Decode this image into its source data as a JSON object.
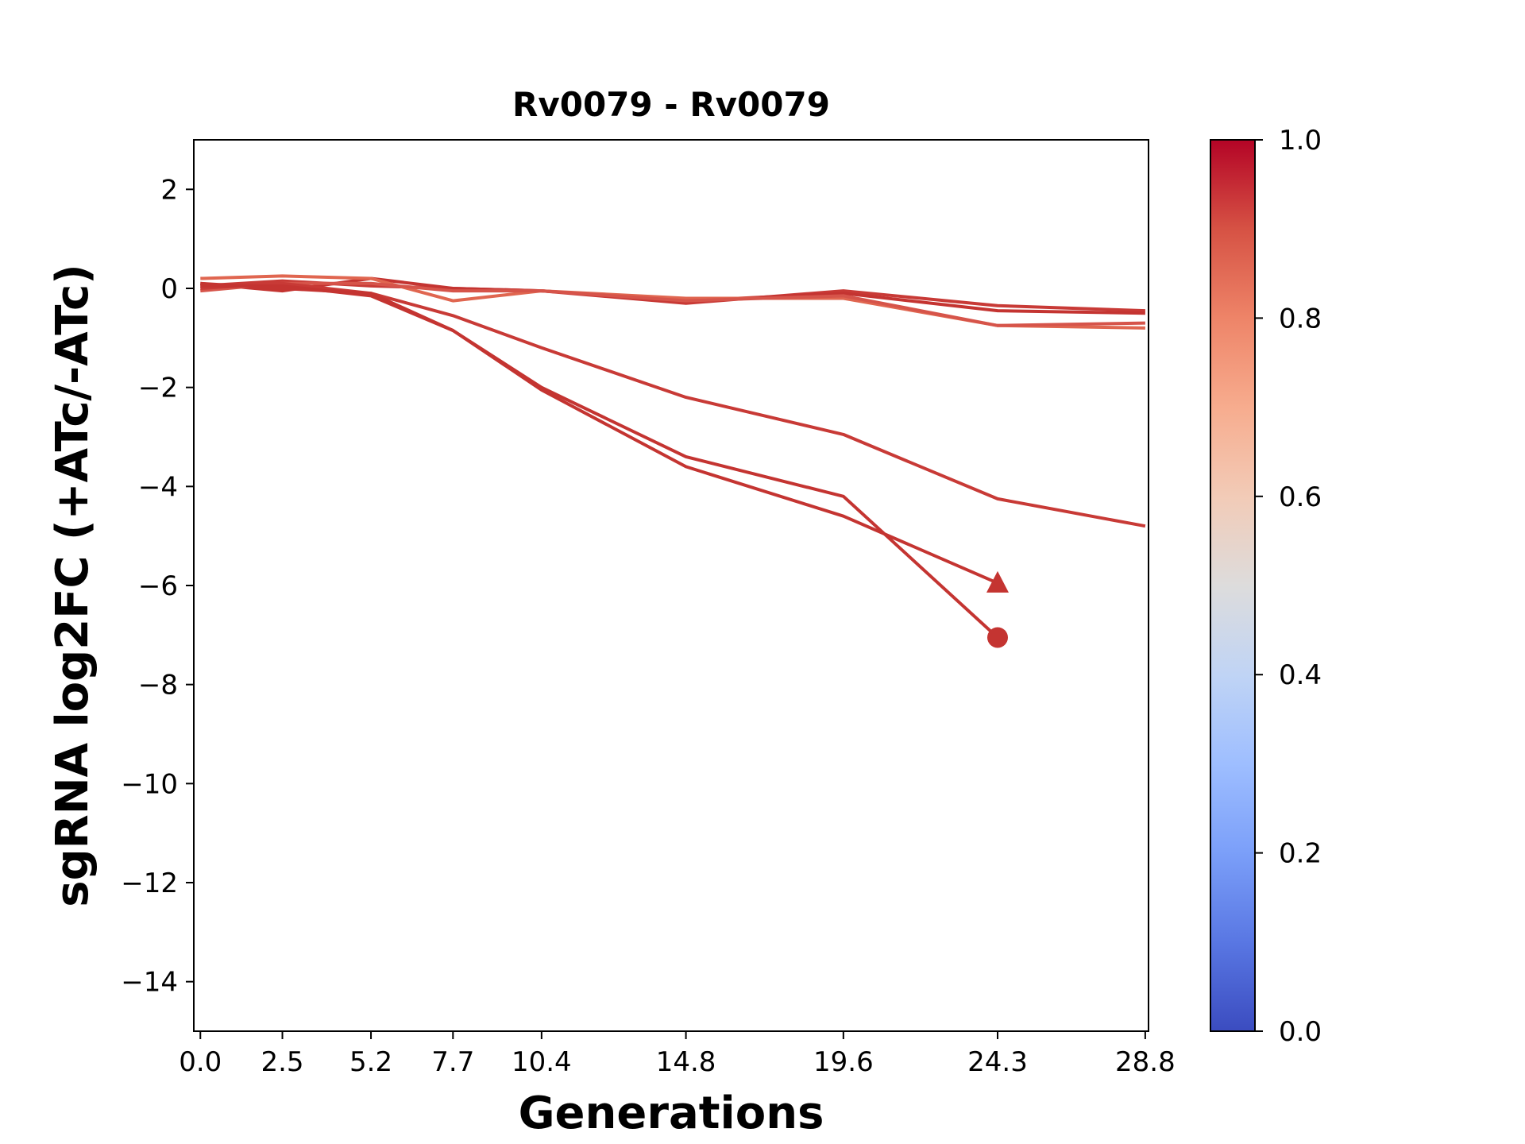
{
  "chart_data": {
    "type": "line",
    "title": "Rv0079 - Rv0079",
    "xlabel": "Generations",
    "ylabel": "sgRNA log2FC (+ATc/-ATc)",
    "x_ticks": [
      "0.0",
      "2.5",
      "5.2",
      "7.7",
      "10.4",
      "14.8",
      "19.6",
      "24.3",
      "28.8"
    ],
    "x_tick_values": [
      0.0,
      2.5,
      5.2,
      7.7,
      10.4,
      14.8,
      19.6,
      24.3,
      28.8
    ],
    "y_ticks": [
      2,
      0,
      -2,
      -4,
      -6,
      -8,
      -10,
      -12,
      -14
    ],
    "y_tick_labels": [
      "2",
      "0",
      "−2",
      "−4",
      "−6",
      "−8",
      "−10",
      "−12",
      "−14"
    ],
    "xlim": [
      -0.2,
      28.9
    ],
    "ylim": [
      -15,
      3
    ],
    "grid": false,
    "colorbar": {
      "colormap": "coolwarm",
      "range": [
        0,
        1
      ],
      "ticks": [
        "0.0",
        "0.2",
        "0.4",
        "0.6",
        "0.8",
        "1.0"
      ],
      "low_color": "#3b4cc0",
      "mid_color": "#dddddd",
      "high_color": "#b40426"
    },
    "series": [
      {
        "x": [
          0.0,
          2.5,
          5.2,
          7.7,
          10.4,
          14.8,
          19.6,
          24.3,
          28.8
        ],
        "y": [
          0.05,
          0.15,
          0.05,
          0.0,
          -0.05,
          -0.3,
          -0.05,
          -0.35,
          -0.45
        ],
        "color": "#c83a36",
        "marker": null
      },
      {
        "x": [
          0.0,
          2.5,
          5.2,
          7.7,
          10.4,
          14.8,
          19.6,
          24.3,
          28.8
        ],
        "y": [
          0.1,
          -0.05,
          0.2,
          0.0,
          -0.05,
          -0.25,
          -0.1,
          -0.45,
          -0.5
        ],
        "color": "#c43431",
        "marker": null
      },
      {
        "x": [
          0.0,
          2.5,
          5.2,
          7.7,
          10.4,
          14.8,
          19.6,
          24.3,
          28.8
        ],
        "y": [
          0.2,
          0.25,
          0.2,
          -0.25,
          -0.05,
          -0.2,
          -0.2,
          -0.75,
          -0.8
        ],
        "color": "#e06650",
        "marker": null
      },
      {
        "x": [
          0.0,
          2.5,
          5.2,
          7.7,
          10.4,
          14.8,
          19.6,
          24.3,
          28.8
        ],
        "y": [
          -0.05,
          0.1,
          0.1,
          -0.05,
          -0.05,
          -0.25,
          -0.15,
          -0.75,
          -0.7
        ],
        "color": "#d6544a",
        "marker": null
      },
      {
        "x": [
          0.0,
          2.5,
          5.2,
          7.7,
          10.4,
          14.8,
          19.6,
          24.3,
          28.8
        ],
        "y": [
          0.0,
          0.1,
          -0.1,
          -0.55,
          -1.2,
          -2.2,
          -2.95,
          -4.25,
          -4.8
        ],
        "color": "#c83a36",
        "marker": null
      },
      {
        "x": [
          0.0,
          2.5,
          5.2,
          7.7,
          10.4,
          14.8,
          19.6,
          24.3
        ],
        "y": [
          0.05,
          0.05,
          -0.15,
          -0.85,
          -2.0,
          -3.4,
          -4.2,
          -7.05
        ],
        "color": "#c43431",
        "marker": "circle"
      },
      {
        "x": [
          0.0,
          2.5,
          5.2,
          7.7,
          10.4,
          14.8,
          19.6,
          24.3
        ],
        "y": [
          0.1,
          0.0,
          -0.1,
          -0.85,
          -2.05,
          -3.6,
          -4.6,
          -5.95
        ],
        "color": "#c43431",
        "marker": "triangle"
      }
    ]
  }
}
